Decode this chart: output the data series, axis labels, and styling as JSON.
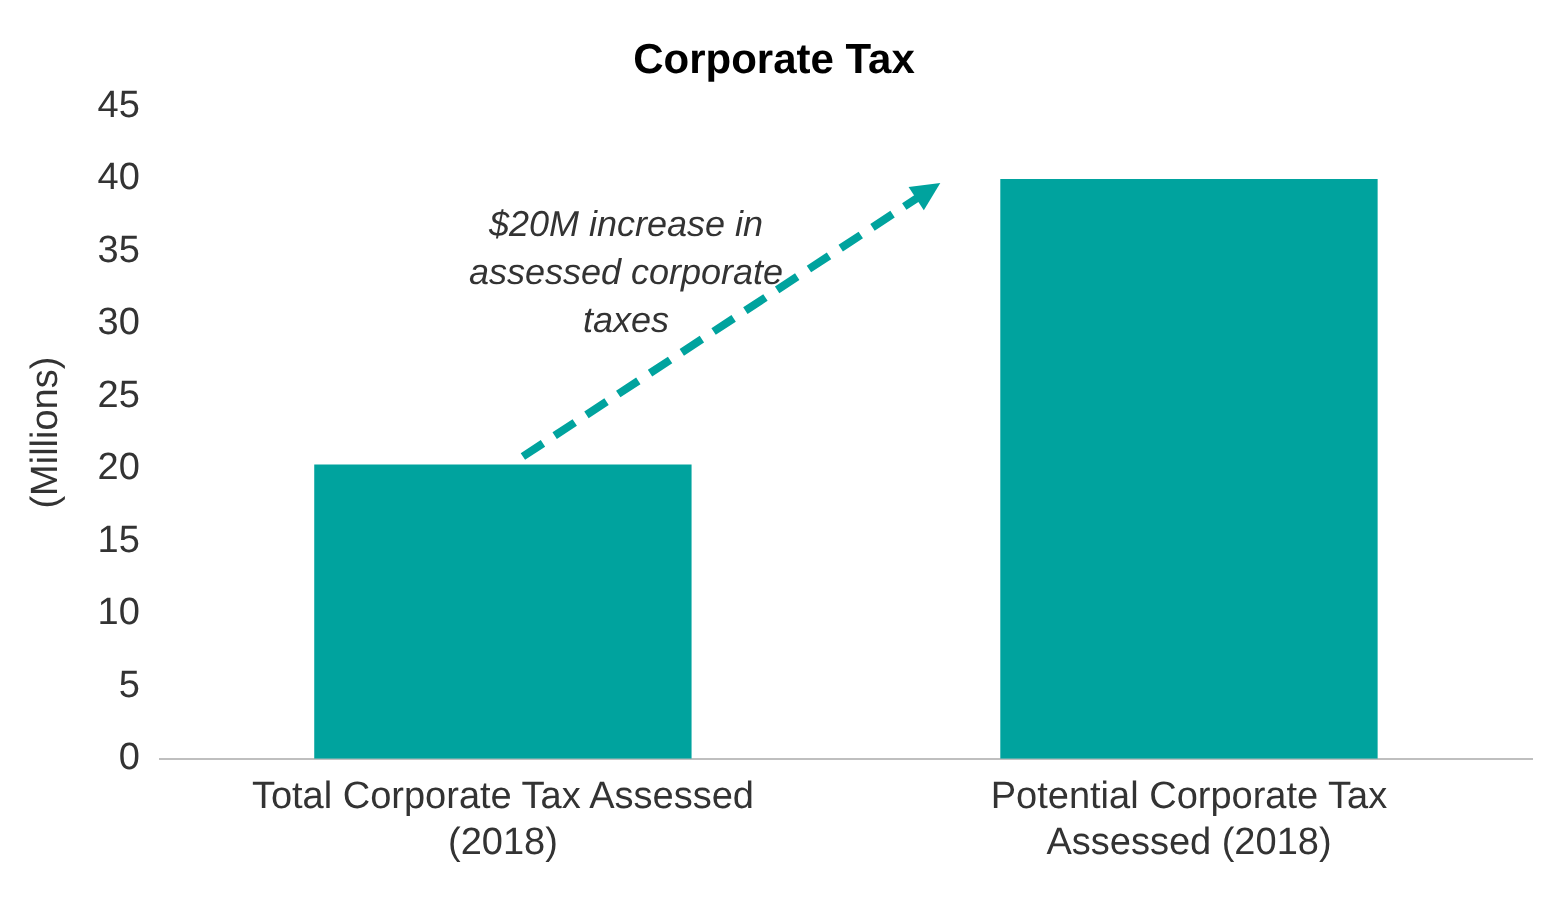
{
  "chart_data": {
    "type": "bar",
    "title": "Corporate Tax",
    "ylabel": "(Millions)",
    "categories": [
      "Total Corporate Tax Assessed (2018)",
      "Potential Corporate Tax Assessed (2018)"
    ],
    "values": [
      20.3,
      40
    ],
    "color": "#00a39e",
    "ylim": [
      0,
      45
    ],
    "yticks": [
      0,
      5,
      10,
      15,
      20,
      25,
      30,
      35,
      40,
      45
    ],
    "grid": false,
    "legend": false,
    "annotations": [
      "$20M increase in assessed corporate taxes"
    ]
  }
}
